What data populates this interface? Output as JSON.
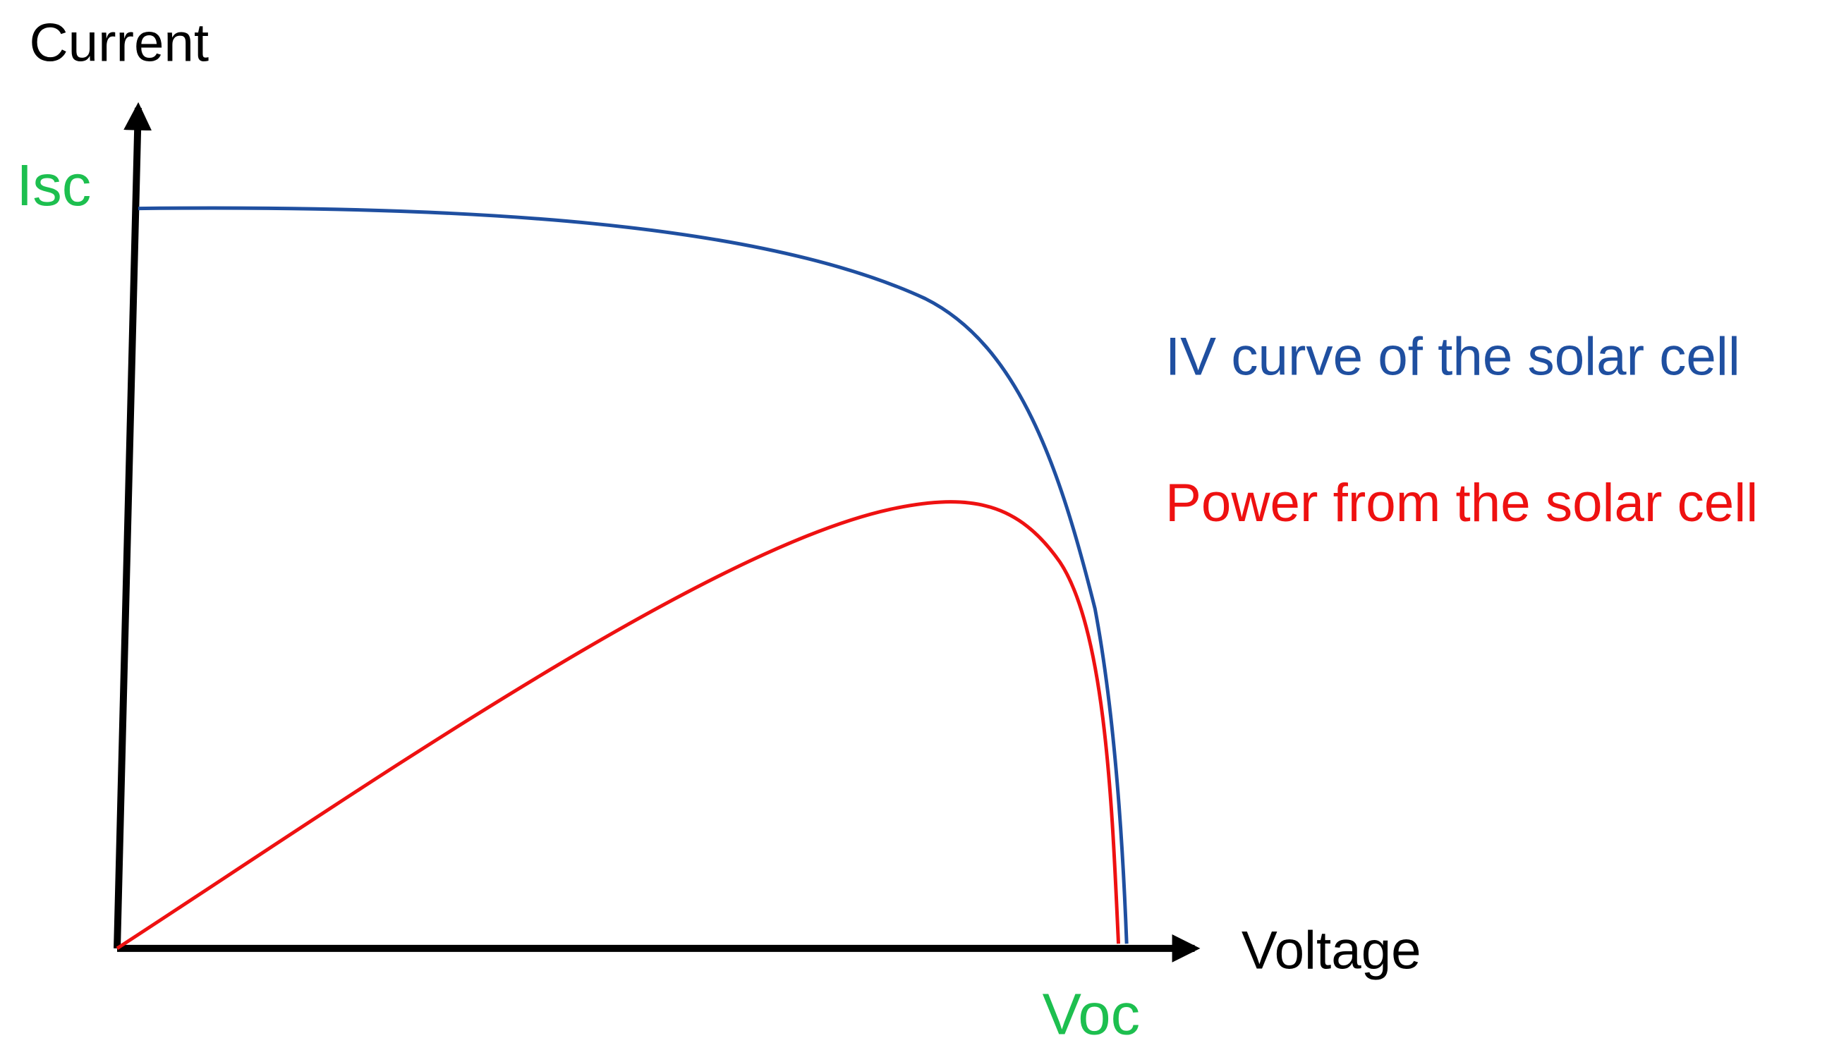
{
  "axes": {
    "y_label": "Current",
    "x_label": "Voltage",
    "y_marker": "Isc",
    "x_marker": "Voc"
  },
  "legend": {
    "iv_curve": "IV curve of the solar cell",
    "power": "Power from the solar cell"
  }
}
